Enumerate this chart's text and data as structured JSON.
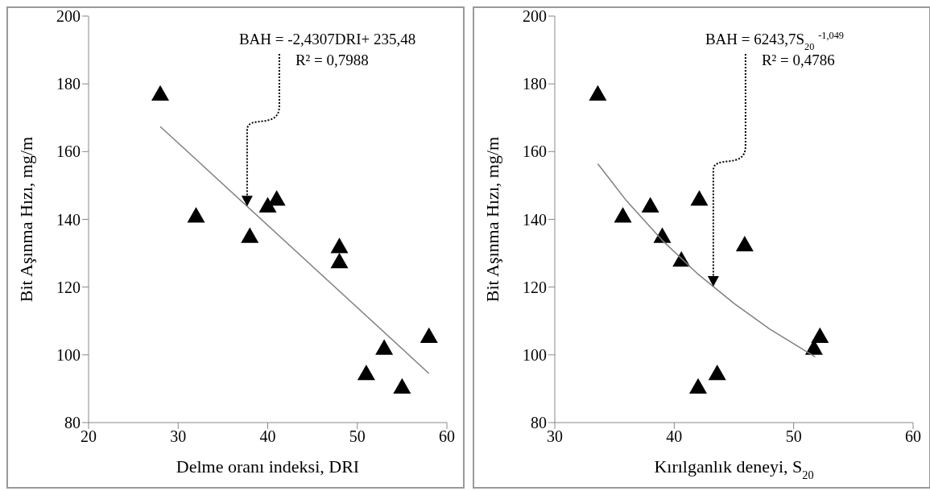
{
  "chart_data": [
    {
      "type": "scatter",
      "xlabel": "Delme oranı indeksi, DRI",
      "ylabel": "Bit  Aşınma Hızı,  mg/m",
      "xlim": [
        20,
        60
      ],
      "xticks": [
        20,
        30,
        40,
        50,
        60
      ],
      "ylim": [
        80,
        200
      ],
      "yticks": [
        80,
        100,
        120,
        140,
        160,
        180,
        200
      ],
      "grid": false,
      "legend": false,
      "marker": "triangle",
      "series": [
        {
          "type": "scatter",
          "color": "#000000",
          "x": [
            28,
            32,
            38,
            40,
            41,
            48,
            48,
            51,
            53,
            55,
            58
          ],
          "values": [
            177,
            141,
            135,
            144,
            146,
            132,
            127.5,
            94.5,
            102,
            90.5,
            105.5
          ]
        },
        {
          "type": "line",
          "color": "#808080",
          "marker": "none",
          "x": [
            28,
            58
          ],
          "values": [
            167.4,
            94.5
          ]
        }
      ],
      "annotations": [
        "BAH = -2,4307DRI+ 235,48",
        "R² = 0,7988"
      ]
    },
    {
      "type": "scatter",
      "xlabel": "Kırılganlık deneyi, S$_{20}$",
      "ylabel": "Bit  Aşınma Hızı,  mg/m",
      "xlim": [
        30,
        60
      ],
      "xticks": [
        30,
        40,
        50,
        60
      ],
      "ylim": [
        80,
        200
      ],
      "yticks": [
        80,
        100,
        120,
        140,
        160,
        180,
        200
      ],
      "grid": false,
      "legend": false,
      "marker": "triangle",
      "series": [
        {
          "type": "scatter",
          "color": "#000000",
          "x": [
            33.6,
            35.7,
            38,
            39,
            40.6,
            42.1,
            45.9,
            42,
            43.6,
            51.7,
            52.2
          ],
          "values": [
            177,
            141,
            144,
            135,
            128,
            146,
            132.5,
            90.5,
            94.5,
            102,
            105.5
          ]
        },
        {
          "type": "line",
          "color": "#808080",
          "marker": "none",
          "x": [
            33.6,
            36,
            39,
            42,
            45,
            48,
            51.8
          ],
          "values": [
            156.4,
            145.5,
            133.8,
            123.8,
            115.2,
            107.6,
            99.4
          ]
        }
      ],
      "annotations": [
        "BAH = 6243,7S$_{20}$$^{-1,049}$",
        "R² = 0,4786"
      ]
    }
  ]
}
